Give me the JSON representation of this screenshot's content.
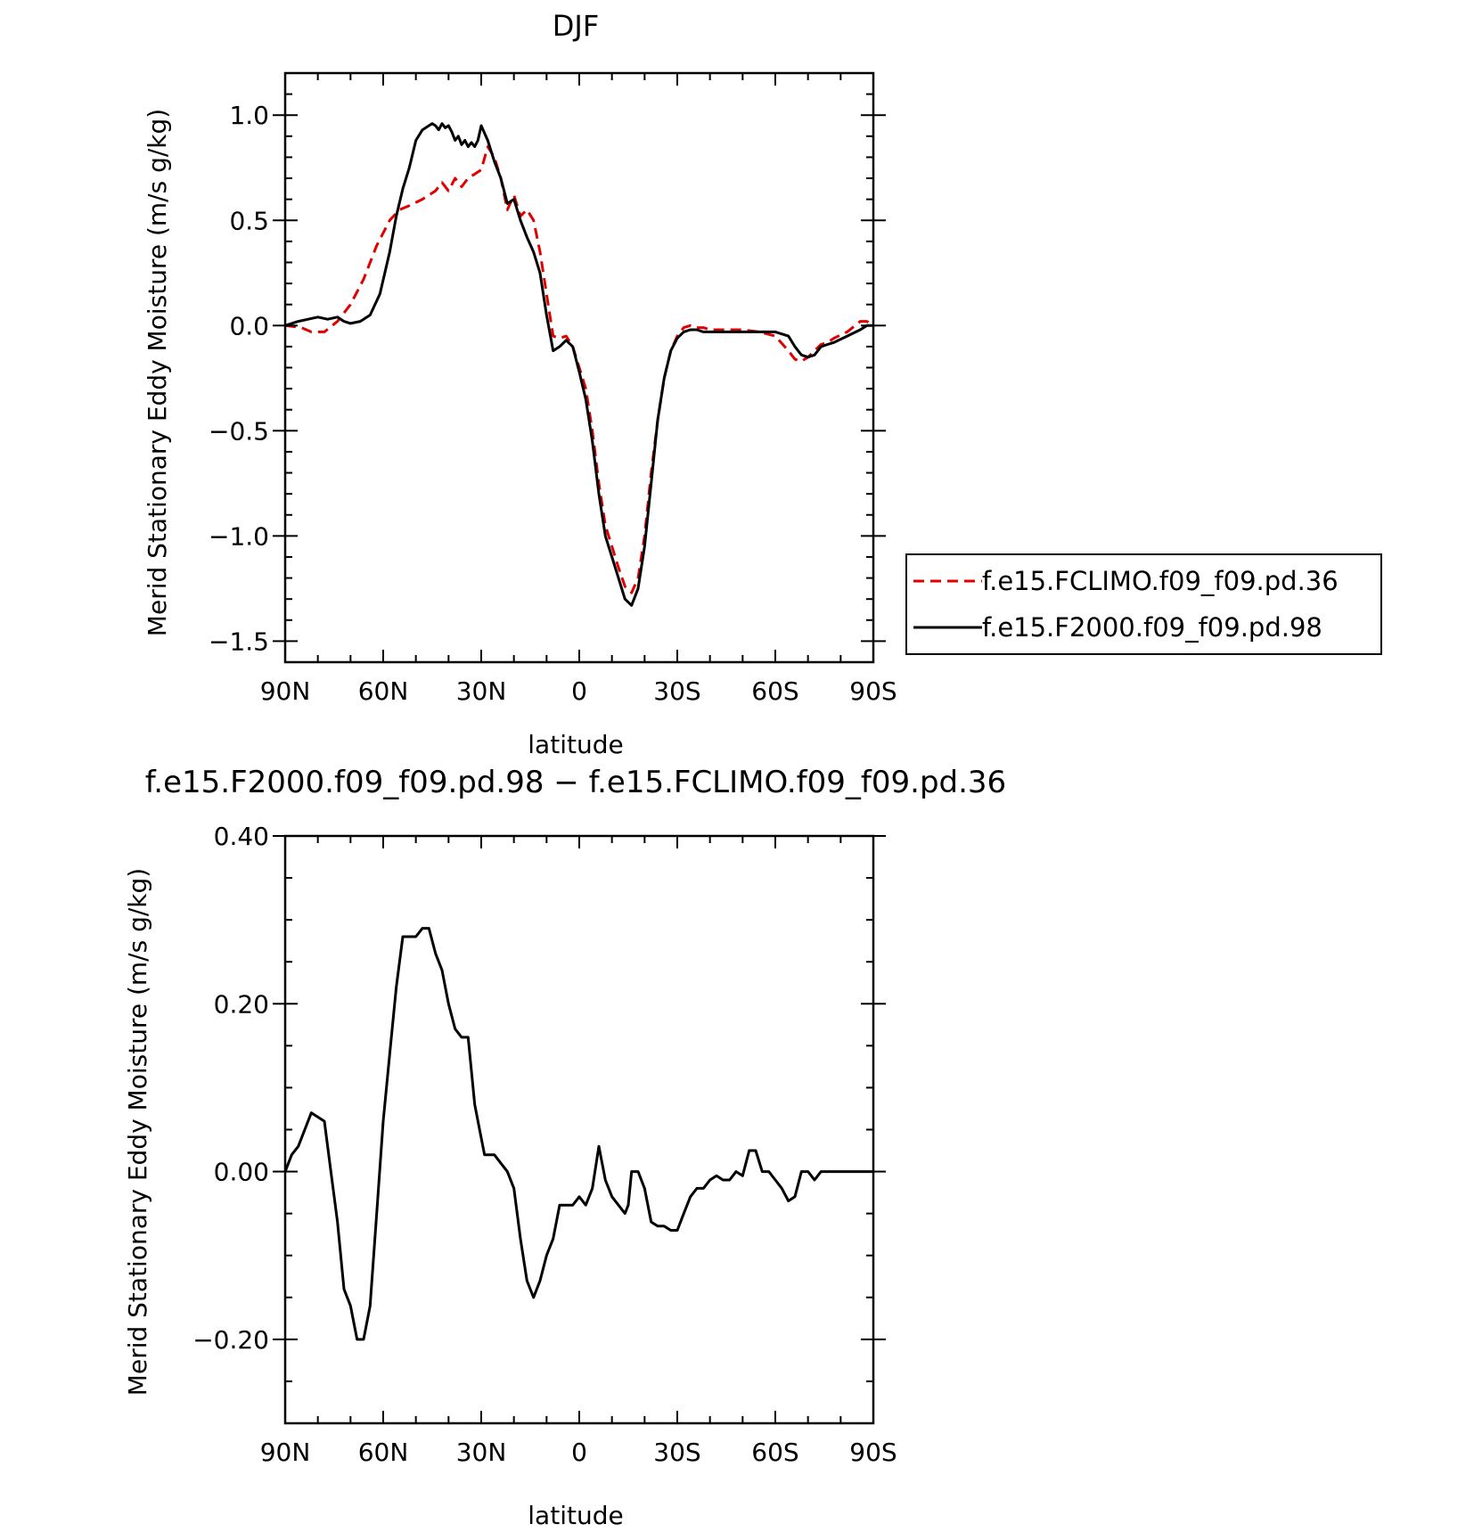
{
  "chart_data": [
    {
      "type": "line",
      "title": "DJF",
      "xlabel": "latitude",
      "ylabel": "Merid Stationary Eddy Moisture (m/s g/kg)",
      "xlim": [
        90,
        -90
      ],
      "ylim": [
        -1.6,
        1.2
      ],
      "x_ticks": [
        90,
        60,
        30,
        0,
        -30,
        -60,
        -90
      ],
      "x_tick_labels": [
        "90N",
        "60N",
        "30N",
        "0",
        "30S",
        "60S",
        "90S"
      ],
      "y_ticks": [
        1.0,
        0.5,
        0.0,
        -0.5,
        -1.0,
        -1.5
      ],
      "y_tick_labels": [
        "1.0",
        "0.5",
        "0.0",
        "−0.5",
        "−1.0",
        "−1.5"
      ],
      "legend_position": "right",
      "series": [
        {
          "name": "f.e15.FCLIMO.f09_f09.pd.36",
          "color": "#e00000",
          "dash": "dashed",
          "x": [
            90,
            85,
            82,
            78,
            74,
            70,
            66,
            62,
            58,
            55,
            52,
            48,
            46,
            44,
            42,
            40,
            38,
            36,
            34,
            32,
            30,
            28,
            26,
            24,
            22,
            20,
            18,
            16,
            14,
            12,
            10,
            8,
            6,
            4,
            2,
            0,
            -2,
            -4,
            -6,
            -8,
            -10,
            -12,
            -14,
            -16,
            -18,
            -20,
            -22,
            -24,
            -26,
            -28,
            -30,
            -32,
            -34,
            -36,
            -38,
            -40,
            -42,
            -44,
            -46,
            -50,
            -55,
            -60,
            -64,
            -66,
            -68,
            -70,
            -72,
            -74,
            -76,
            -78,
            -82,
            -86,
            -88,
            -90
          ],
          "y": [
            0.0,
            -0.01,
            -0.03,
            -0.03,
            0.02,
            0.1,
            0.22,
            0.38,
            0.5,
            0.55,
            0.57,
            0.6,
            0.62,
            0.64,
            0.68,
            0.64,
            0.7,
            0.66,
            0.7,
            0.72,
            0.74,
            0.85,
            0.8,
            0.7,
            0.55,
            0.62,
            0.52,
            0.55,
            0.5,
            0.35,
            0.15,
            -0.05,
            -0.06,
            -0.05,
            -0.1,
            -0.2,
            -0.3,
            -0.5,
            -0.75,
            -0.95,
            -1.05,
            -1.15,
            -1.24,
            -1.27,
            -1.2,
            -1.0,
            -0.7,
            -0.45,
            -0.25,
            -0.12,
            -0.05,
            -0.01,
            0.0,
            -0.01,
            -0.01,
            -0.02,
            -0.02,
            -0.02,
            -0.02,
            -0.02,
            -0.03,
            -0.05,
            -0.12,
            -0.16,
            -0.17,
            -0.15,
            -0.12,
            -0.09,
            -0.08,
            -0.06,
            -0.03,
            0.02,
            0.02,
            0.0
          ]
        },
        {
          "name": "f.e15.F2000.f09_f09.pd.98",
          "color": "#000000",
          "dash": "solid",
          "x": [
            90,
            86,
            83,
            80,
            77,
            74,
            72,
            70,
            67,
            64,
            61,
            58,
            56,
            54,
            52,
            50,
            48,
            46,
            45,
            44,
            43,
            42,
            41,
            40,
            39,
            38,
            37,
            36,
            35,
            34,
            33,
            32,
            31,
            30,
            28,
            26,
            24,
            22,
            20,
            18,
            16,
            14,
            12,
            10,
            8,
            6,
            4,
            2,
            0,
            -2,
            -4,
            -6,
            -8,
            -10,
            -12,
            -14,
            -16,
            -18,
            -20,
            -22,
            -24,
            -26,
            -28,
            -30,
            -32,
            -34,
            -36,
            -38,
            -40,
            -42,
            -44,
            -46,
            -50,
            -55,
            -60,
            -64,
            -66,
            -68,
            -70,
            -72,
            -74,
            -76,
            -78,
            -82,
            -86,
            -88,
            -90
          ],
          "y": [
            0.0,
            0.02,
            0.03,
            0.04,
            0.03,
            0.04,
            0.02,
            0.01,
            0.02,
            0.05,
            0.15,
            0.35,
            0.52,
            0.65,
            0.75,
            0.88,
            0.93,
            0.95,
            0.96,
            0.95,
            0.93,
            0.96,
            0.94,
            0.95,
            0.92,
            0.88,
            0.9,
            0.86,
            0.88,
            0.85,
            0.87,
            0.85,
            0.88,
            0.95,
            0.88,
            0.78,
            0.7,
            0.58,
            0.6,
            0.5,
            0.42,
            0.35,
            0.25,
            0.05,
            -0.12,
            -0.1,
            -0.07,
            -0.1,
            -0.22,
            -0.35,
            -0.55,
            -0.8,
            -1.0,
            -1.1,
            -1.2,
            -1.3,
            -1.33,
            -1.25,
            -1.05,
            -0.75,
            -0.45,
            -0.25,
            -0.12,
            -0.06,
            -0.03,
            -0.02,
            -0.02,
            -0.03,
            -0.03,
            -0.03,
            -0.03,
            -0.03,
            -0.03,
            -0.03,
            -0.03,
            -0.05,
            -0.1,
            -0.14,
            -0.15,
            -0.14,
            -0.1,
            -0.09,
            -0.08,
            -0.05,
            -0.02,
            0.0,
            0.0
          ]
        }
      ]
    },
    {
      "type": "line",
      "title": "f.e15.F2000.f09_f09.pd.98 − f.e15.FCLIMO.f09_f09.pd.36",
      "xlabel": "latitude",
      "ylabel": "Merid Stationary Eddy Moisture (m/s g/kg)",
      "xlim": [
        90,
        -90
      ],
      "ylim": [
        -0.3,
        0.4
      ],
      "x_ticks": [
        90,
        60,
        30,
        0,
        -30,
        -60,
        -90
      ],
      "x_tick_labels": [
        "90N",
        "60N",
        "30N",
        "0",
        "30S",
        "60S",
        "90S"
      ],
      "y_ticks": [
        0.4,
        0.2,
        0.0,
        -0.2
      ],
      "y_tick_labels": [
        "0.40",
        "0.20",
        "0.00",
        "−0.20"
      ],
      "series": [
        {
          "color": "#000000",
          "dash": "solid",
          "x": [
            90,
            88,
            86,
            84,
            82,
            80,
            78,
            76,
            74,
            72,
            70,
            68,
            66,
            64,
            62,
            60,
            58,
            56,
            54,
            52,
            50,
            48,
            46,
            44,
            42,
            40,
            38,
            37,
            36,
            34,
            32,
            30,
            29,
            28,
            26,
            24,
            22,
            20,
            18,
            16,
            14,
            12,
            10,
            8,
            6,
            4,
            2,
            0,
            -2,
            -4,
            -6,
            -8,
            -10,
            -12,
            -14,
            -15,
            -16,
            -18,
            -20,
            -22,
            -24,
            -26,
            -28,
            -30,
            -32,
            -34,
            -36,
            -38,
            -40,
            -42,
            -44,
            -46,
            -48,
            -50,
            -52,
            -54,
            -56,
            -58,
            -60,
            -62,
            -64,
            -66,
            -68,
            -70,
            -72,
            -74,
            -76,
            -78,
            -80,
            -82,
            -84,
            -86,
            -88,
            -90
          ],
          "y": [
            0.0,
            0.02,
            0.03,
            0.05,
            0.07,
            0.065,
            0.06,
            0.0,
            -0.06,
            -0.14,
            -0.16,
            -0.2,
            -0.2,
            -0.16,
            -0.05,
            0.06,
            0.14,
            0.22,
            0.28,
            0.28,
            0.28,
            0.29,
            0.29,
            0.26,
            0.24,
            0.2,
            0.17,
            0.165,
            0.16,
            0.16,
            0.08,
            0.04,
            0.02,
            0.02,
            0.02,
            0.01,
            0.0,
            -0.02,
            -0.08,
            -0.13,
            -0.15,
            -0.13,
            -0.1,
            -0.08,
            -0.04,
            -0.04,
            -0.04,
            -0.03,
            -0.04,
            -0.02,
            0.03,
            -0.01,
            -0.03,
            -0.04,
            -0.05,
            -0.04,
            0.0,
            0.0,
            -0.02,
            -0.06,
            -0.065,
            -0.065,
            -0.07,
            -0.07,
            -0.05,
            -0.03,
            -0.02,
            -0.02,
            -0.01,
            -0.005,
            -0.01,
            -0.01,
            0.0,
            -0.005,
            0.025,
            0.025,
            0.0,
            0.0,
            -0.01,
            -0.02,
            -0.035,
            -0.03,
            0.0,
            0.0,
            -0.01,
            0.0,
            0.0,
            0.0,
            0.0,
            0.0,
            0.0,
            0.0,
            0.0,
            0.0
          ]
        }
      ]
    }
  ]
}
